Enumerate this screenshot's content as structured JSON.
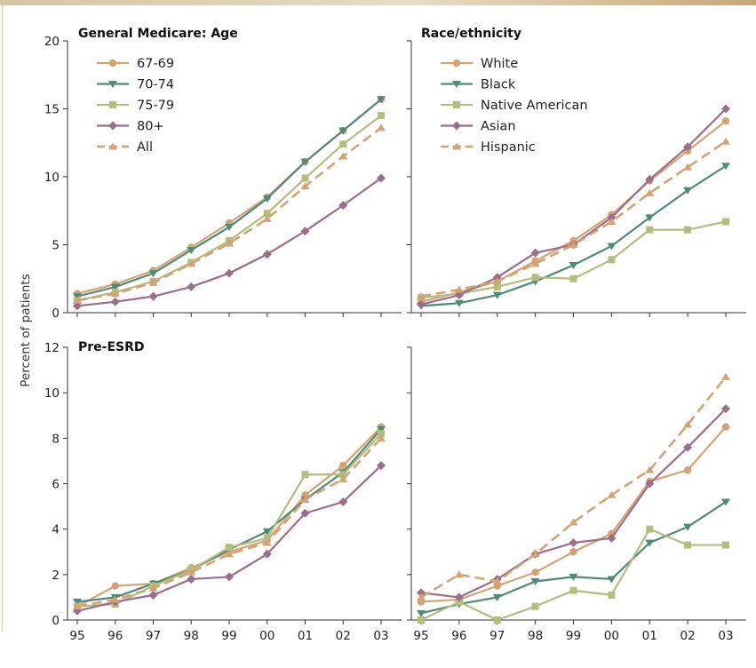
{
  "ylabel": "Percent of patients",
  "colors": {
    "c1": "#d4a373",
    "c2": "#4f8a78",
    "c3": "#b3bd7d",
    "c4": "#9b6e8a",
    "c5": "#d4a373"
  },
  "chart_data": [
    {
      "type": "line",
      "title": "General Medicare: Age",
      "x": [
        "95",
        "96",
        "97",
        "98",
        "99",
        "00",
        "01",
        "02",
        "03"
      ],
      "ylim": [
        0,
        20
      ],
      "yticks": [
        0,
        5,
        10,
        15,
        20
      ],
      "legend": "top-left",
      "series": [
        {
          "name": "67-69",
          "marker": "circle",
          "color": "#d4a373",
          "dashed": false,
          "values": [
            1.4,
            2.1,
            3.1,
            4.8,
            6.6,
            8.5,
            11.1,
            13.4,
            15.7
          ]
        },
        {
          "name": "70-74",
          "marker": "triangle-down",
          "color": "#4f8a78",
          "dashed": false,
          "values": [
            1.2,
            1.9,
            2.9,
            4.6,
            6.3,
            8.4,
            11.1,
            13.4,
            15.7
          ]
        },
        {
          "name": "75-79",
          "marker": "square",
          "color": "#b3bd7d",
          "dashed": false,
          "values": [
            0.9,
            1.5,
            2.3,
            3.7,
            5.3,
            7.3,
            9.9,
            12.4,
            14.5
          ]
        },
        {
          "name": "80+",
          "marker": "diamond",
          "color": "#9b6e8a",
          "dashed": false,
          "values": [
            0.5,
            0.8,
            1.2,
            1.9,
            2.9,
            4.3,
            6.0,
            7.9,
            9.9
          ]
        },
        {
          "name": "All",
          "marker": "triangle-up",
          "color": "#d4a373",
          "dashed": true,
          "values": [
            0.9,
            1.4,
            2.2,
            3.6,
            5.1,
            6.9,
            9.3,
            11.5,
            13.6
          ]
        }
      ]
    },
    {
      "type": "line",
      "title": "Race/ethnicity",
      "x": [
        "95",
        "96",
        "97",
        "98",
        "99",
        "00",
        "01",
        "02",
        "03"
      ],
      "ylim": [
        0,
        20
      ],
      "yticks": [
        0,
        5,
        10,
        15,
        20
      ],
      "legend": "top-left",
      "series": [
        {
          "name": "White",
          "marker": "circle",
          "color": "#d4a373",
          "dashed": false,
          "values": [
            0.8,
            1.5,
            2.3,
            3.8,
            5.3,
            7.2,
            9.7,
            11.9,
            14.1
          ]
        },
        {
          "name": "Black",
          "marker": "triangle-down",
          "color": "#4f8a78",
          "dashed": false,
          "values": [
            0.5,
            0.7,
            1.3,
            2.3,
            3.5,
            4.9,
            7.0,
            9.0,
            10.8
          ]
        },
        {
          "name": "Native American",
          "marker": "square",
          "color": "#b3bd7d",
          "dashed": false,
          "values": [
            1.1,
            1.4,
            1.9,
            2.6,
            2.5,
            3.9,
            6.1,
            6.1,
            6.7
          ]
        },
        {
          "name": "Asian",
          "marker": "diamond",
          "color": "#9b6e8a",
          "dashed": false,
          "values": [
            0.6,
            1.3,
            2.6,
            4.4,
            5.0,
            7.0,
            9.8,
            12.2,
            15.0
          ]
        },
        {
          "name": "Hispanic",
          "marker": "triangle-up",
          "color": "#d4a373",
          "dashed": true,
          "values": [
            1.2,
            1.7,
            2.3,
            3.6,
            5.0,
            6.7,
            8.8,
            10.7,
            12.6
          ]
        }
      ]
    },
    {
      "type": "line",
      "title": "Pre-ESRD",
      "x": [
        "95",
        "96",
        "97",
        "98",
        "99",
        "00",
        "01",
        "02",
        "03"
      ],
      "ylim": [
        0,
        12
      ],
      "yticks": [
        0,
        2,
        4,
        6,
        8,
        10,
        12
      ],
      "series": [
        {
          "name": "67-69",
          "marker": "circle",
          "color": "#d4a373",
          "dashed": false,
          "values": [
            0.6,
            1.5,
            1.6,
            2.3,
            3.0,
            3.5,
            5.5,
            6.8,
            8.5
          ]
        },
        {
          "name": "70-74",
          "marker": "triangle-down",
          "color": "#4f8a78",
          "dashed": false,
          "values": [
            0.8,
            1.0,
            1.6,
            2.2,
            3.1,
            3.9,
            5.3,
            6.5,
            8.4
          ]
        },
        {
          "name": "75-79",
          "marker": "square",
          "color": "#b3bd7d",
          "dashed": false,
          "values": [
            0.6,
            0.7,
            1.5,
            2.2,
            3.2,
            3.6,
            6.4,
            6.4,
            8.2
          ]
        },
        {
          "name": "80+",
          "marker": "diamond",
          "color": "#9b6e8a",
          "dashed": false,
          "values": [
            0.4,
            0.8,
            1.1,
            1.8,
            1.9,
            2.9,
            4.7,
            5.2,
            6.8
          ]
        },
        {
          "name": "All",
          "marker": "triangle-up",
          "color": "#d4a373",
          "dashed": true,
          "values": [
            0.6,
            0.9,
            1.4,
            2.1,
            2.9,
            3.4,
            5.3,
            6.2,
            8.0
          ]
        }
      ]
    },
    {
      "type": "line",
      "title": "",
      "x": [
        "95",
        "96",
        "97",
        "98",
        "99",
        "00",
        "01",
        "02",
        "03"
      ],
      "ylim": [
        0,
        12
      ],
      "yticks": [
        0,
        2,
        4,
        6,
        8,
        10,
        12
      ],
      "series": [
        {
          "name": "White",
          "marker": "circle",
          "color": "#d4a373",
          "dashed": false,
          "values": [
            0.8,
            0.9,
            1.5,
            2.1,
            3.0,
            3.8,
            6.1,
            6.6,
            8.5
          ]
        },
        {
          "name": "Black",
          "marker": "triangle-down",
          "color": "#4f8a78",
          "dashed": false,
          "values": [
            0.3,
            0.7,
            1.0,
            1.7,
            1.9,
            1.8,
            3.4,
            4.1,
            5.2
          ]
        },
        {
          "name": "Native American",
          "marker": "square",
          "color": "#b3bd7d",
          "dashed": false,
          "values": [
            0.0,
            0.8,
            0.0,
            0.6,
            1.3,
            1.1,
            4.0,
            3.3,
            3.3
          ]
        },
        {
          "name": "Asian",
          "marker": "diamond",
          "color": "#9b6e8a",
          "dashed": false,
          "values": [
            1.2,
            1.0,
            1.8,
            2.9,
            3.4,
            3.6,
            6.0,
            7.6,
            9.3
          ]
        },
        {
          "name": "Hispanic",
          "marker": "triangle-up",
          "color": "#d4a373",
          "dashed": true,
          "values": [
            1.0,
            2.0,
            1.7,
            2.9,
            4.3,
            5.5,
            6.6,
            8.6,
            10.7
          ]
        }
      ]
    }
  ]
}
